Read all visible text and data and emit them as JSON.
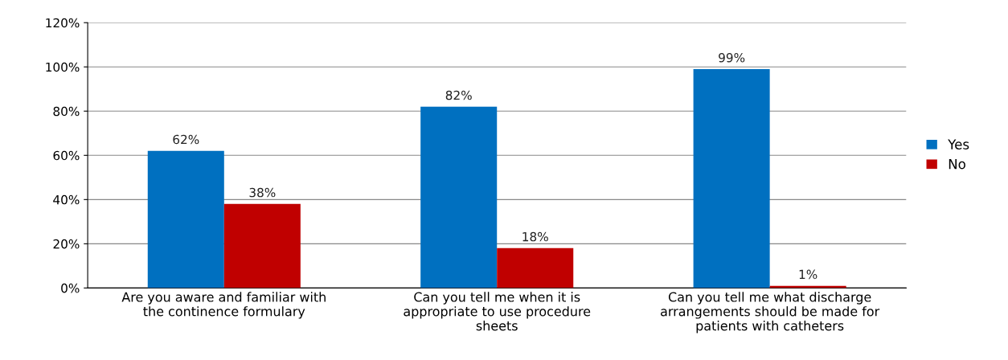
{
  "chart_data": {
    "type": "bar",
    "categories": [
      "Are you aware and familiar with the continence formulary",
      "Can you tell me when it is appropriate to use procedure sheets",
      "Can you tell me what discharge arrangements should be made for patients with catheters"
    ],
    "series": [
      {
        "name": "Yes",
        "color": "#0070c0",
        "values": [
          62,
          82,
          99
        ],
        "value_labels": [
          "62%",
          "82%",
          "99%"
        ]
      },
      {
        "name": "No",
        "color": "#c00000",
        "values": [
          38,
          18,
          1
        ],
        "value_labels": [
          "38%",
          "18%",
          "1%"
        ]
      }
    ],
    "ylim": [
      0,
      120
    ],
    "yticks": [
      {
        "value": 0,
        "label": "0%"
      },
      {
        "value": 20,
        "label": "20%"
      },
      {
        "value": 40,
        "label": "40%"
      },
      {
        "value": 60,
        "label": "60%"
      },
      {
        "value": 80,
        "label": "80%"
      },
      {
        "value": 100,
        "label": "100%"
      },
      {
        "value": 120,
        "label": "120%"
      }
    ],
    "grid": "y",
    "legend": "right"
  }
}
